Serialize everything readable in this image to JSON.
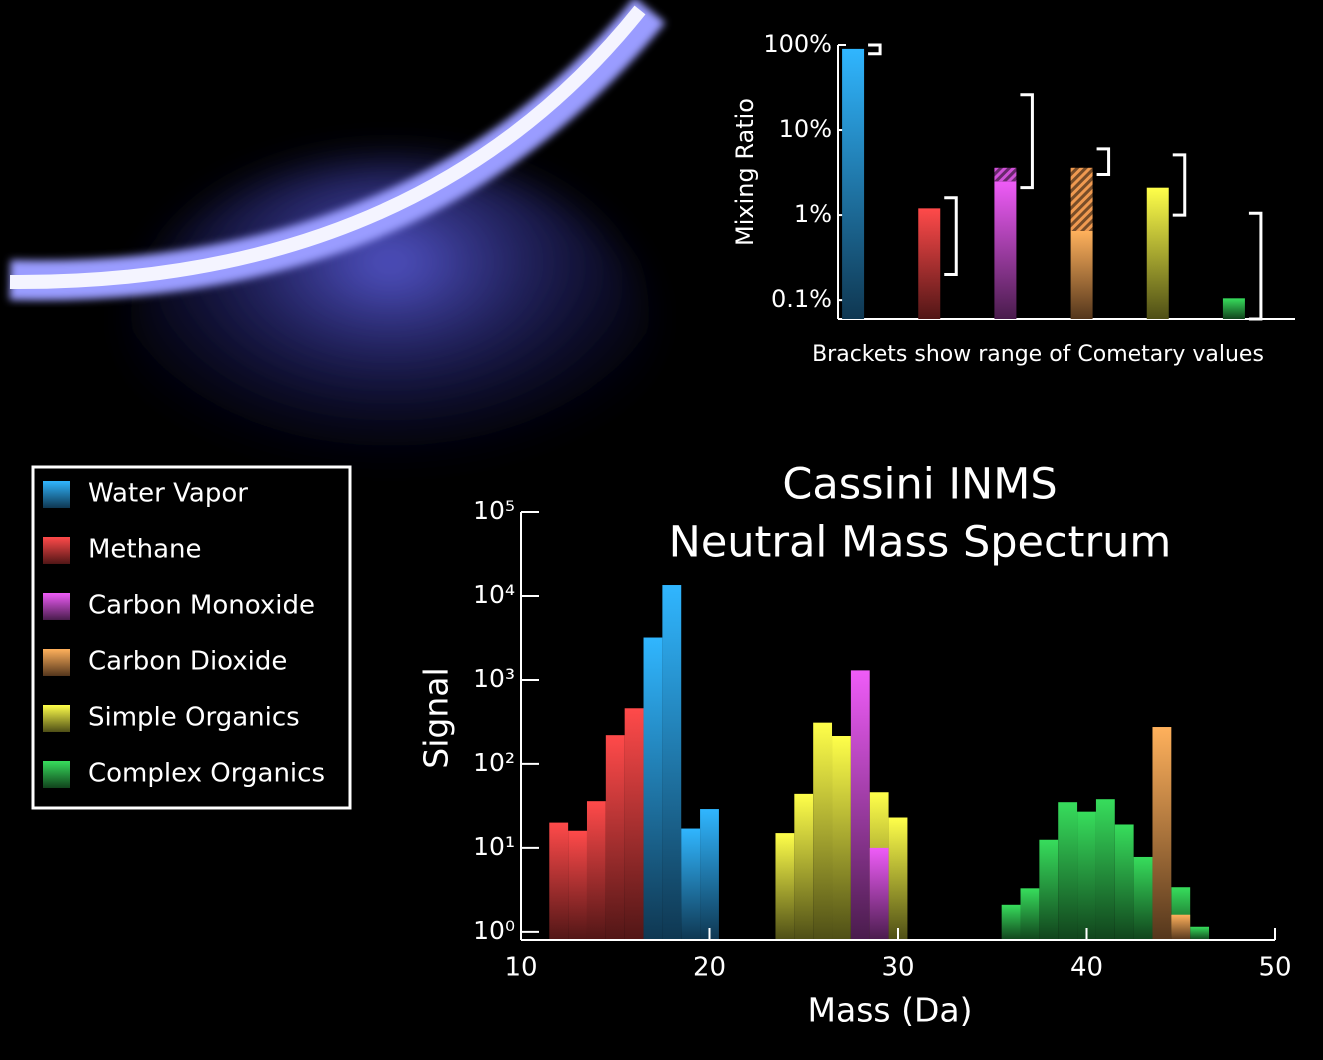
{
  "chart_data": [
    {
      "type": "bar",
      "ylabel": "Mixing Ratio",
      "annotation": "Brackets show range of Cometary values",
      "log_y": true,
      "ylim": [
        0.06,
        100
      ],
      "yticks": [
        {
          "value": 100,
          "label": "100%"
        },
        {
          "value": 10,
          "label": "10%"
        },
        {
          "value": 1,
          "label": "1%"
        },
        {
          "value": 0.1,
          "label": "0.1%"
        }
      ],
      "categories": [
        null,
        null,
        null,
        null,
        null,
        null
      ],
      "values": [
        90,
        1.2,
        2.5,
        0.65,
        2.1,
        0.105
      ],
      "upper_values": [
        null,
        null,
        3.6,
        3.6,
        null,
        null
      ],
      "ranges": [
        [
          79,
          100
        ],
        [
          0.2,
          1.6
        ],
        [
          2.1,
          26
        ],
        [
          3,
          6
        ],
        [
          1,
          5.1
        ],
        [
          0.06,
          1.05
        ]
      ]
    },
    {
      "type": "histogram",
      "title": "Cassini INMS",
      "subtitle": "Neutral Mass Spectrum",
      "xlabel": "Mass (Da)",
      "ylabel": "Signal",
      "log_y": true,
      "legend": "left",
      "xlim": [
        10,
        50
      ],
      "xticks": [
        10,
        20,
        30,
        40,
        50
      ],
      "ylim": [
        0.8,
        100000
      ],
      "yticks": [
        {
          "value": 1,
          "label": "10⁰"
        },
        {
          "value": 10,
          "label": "10¹"
        },
        {
          "value": 100,
          "label": "10²"
        },
        {
          "value": 1000,
          "label": "10³"
        },
        {
          "value": 10000,
          "label": "10⁴"
        },
        {
          "value": 100000,
          "label": "10⁵"
        }
      ],
      "x": [
        12,
        13,
        14,
        15,
        16,
        17,
        18,
        19,
        20,
        21,
        22,
        23,
        24,
        25,
        26,
        27,
        28,
        29,
        30,
        31,
        32,
        33,
        34,
        35,
        36,
        37,
        38,
        39,
        40,
        41,
        42,
        43,
        44,
        45,
        46
      ],
      "series": [
        {
          "name": "Water Vapor",
          "color": "#2a9ee6",
          "values": [
            null,
            null,
            null,
            null,
            null,
            3200,
            13500,
            17,
            29,
            null,
            null,
            null,
            null,
            null,
            null,
            null,
            null,
            null,
            null,
            null,
            null,
            null,
            null,
            null,
            null,
            null,
            null,
            null,
            null,
            null,
            null,
            null,
            null,
            null,
            null
          ]
        },
        {
          "name": "Methane",
          "color": "#e84040",
          "values": [
            20,
            16,
            36,
            220,
            460,
            null,
            null,
            null,
            null,
            null,
            null,
            null,
            null,
            null,
            null,
            null,
            null,
            null,
            null,
            null,
            null,
            null,
            null,
            null,
            null,
            null,
            null,
            null,
            null,
            null,
            null,
            null,
            null,
            null,
            null
          ]
        },
        {
          "name": "Carbon Monoxide",
          "color": "#d050d8",
          "values": [
            null,
            null,
            null,
            null,
            null,
            null,
            null,
            null,
            null,
            null,
            null,
            null,
            null,
            null,
            null,
            null,
            1300,
            10,
            null,
            null,
            null,
            null,
            null,
            null,
            null,
            null,
            null,
            null,
            null,
            null,
            null,
            null,
            null,
            null,
            null
          ]
        },
        {
          "name": "Carbon Dioxide",
          "color": "#f09a50",
          "values": [
            null,
            null,
            null,
            null,
            null,
            null,
            null,
            null,
            null,
            null,
            null,
            null,
            null,
            null,
            null,
            null,
            null,
            null,
            null,
            null,
            null,
            null,
            null,
            null,
            null,
            null,
            null,
            null,
            null,
            null,
            null,
            null,
            275,
            1.6,
            null
          ]
        },
        {
          "name": "Simple Organics",
          "color": "#e0e040",
          "values": [
            null,
            null,
            null,
            null,
            null,
            null,
            null,
            null,
            null,
            null,
            null,
            null,
            15,
            44,
            310,
            215,
            null,
            46,
            23,
            null,
            null,
            null,
            null,
            null,
            null,
            null,
            null,
            null,
            null,
            null,
            null,
            null,
            null,
            null,
            null
          ]
        },
        {
          "name": "Complex Organics",
          "color": "#30c050",
          "values": [
            null,
            null,
            null,
            null,
            null,
            null,
            null,
            null,
            null,
            null,
            null,
            null,
            null,
            null,
            null,
            null,
            null,
            null,
            null,
            null,
            null,
            null,
            null,
            null,
            2.1,
            3.3,
            12.5,
            35,
            27,
            38,
            19,
            7.8,
            null,
            3.4,
            1.15
          ]
        }
      ]
    }
  ]
}
